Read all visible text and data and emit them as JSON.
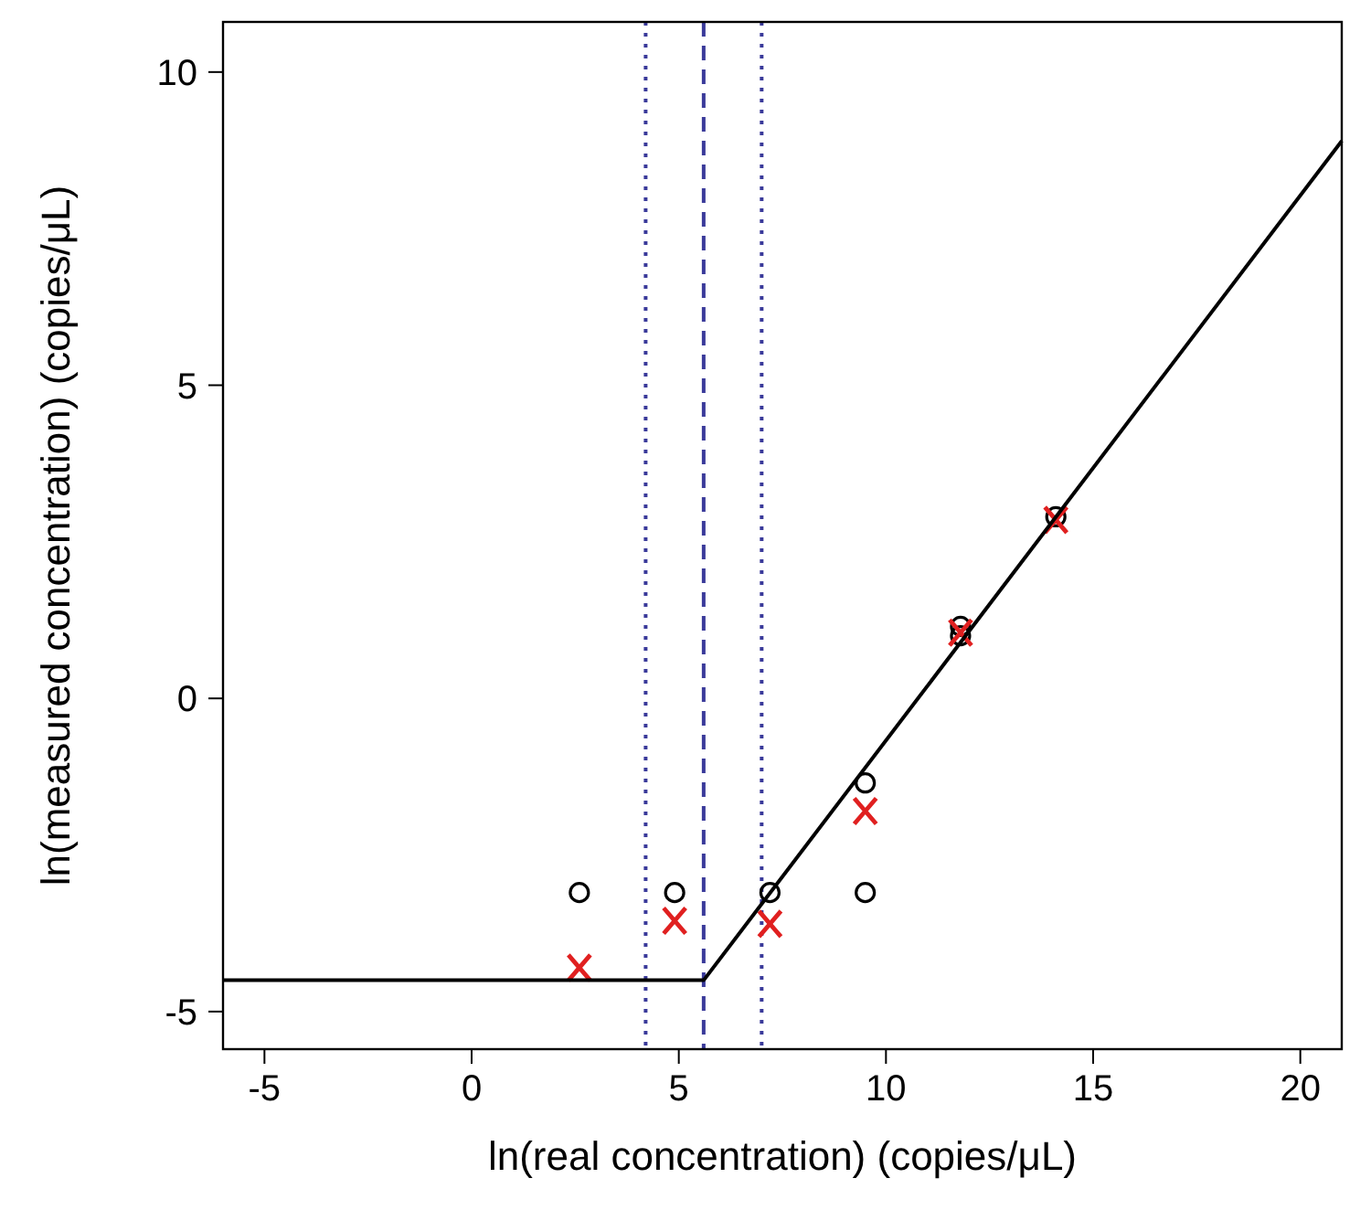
{
  "chart_data": {
    "type": "scatter",
    "xlabel": "ln(real concentration) (copies/μL)",
    "ylabel": "ln(measured concentration) (copies/μL)",
    "xlim": [
      -6,
      21
    ],
    "ylim": [
      -5.6,
      10.8
    ],
    "xticks": [
      -5,
      0,
      5,
      10,
      15,
      20
    ],
    "yticks": [
      -5,
      0,
      5,
      10
    ],
    "grid": false,
    "series": [
      {
        "marker": "circle",
        "color": "#000000",
        "x": [
          2.6,
          4.9,
          7.2,
          9.5,
          9.5,
          11.8,
          11.8,
          14.1
        ],
        "values": [
          -3.1,
          -3.1,
          -3.1,
          -1.35,
          -3.1,
          1.0,
          1.15,
          2.9
        ]
      },
      {
        "marker": "cross",
        "color": "#e02020",
        "x": [
          2.6,
          4.9,
          7.2,
          9.5,
          11.8,
          14.1
        ],
        "values": [
          -4.3,
          -3.55,
          -3.6,
          -1.8,
          1.05,
          2.85
        ]
      },
      {
        "type": "line",
        "marker": "none",
        "line_style": "solid",
        "color": "#000000",
        "x": [
          -6,
          5.6,
          21
        ],
        "values": [
          -4.5,
          -4.5,
          8.9
        ]
      }
    ],
    "ref_lines": [
      {
        "axis": "x",
        "value": 4.2,
        "color": "#3a3a9a",
        "line_style": "dotted"
      },
      {
        "axis": "x",
        "value": 5.6,
        "color": "#3a3a9a",
        "line_style": "dashed"
      },
      {
        "axis": "x",
        "value": 7.0,
        "color": "#3a3a9a",
        "line_style": "dotted"
      }
    ]
  }
}
